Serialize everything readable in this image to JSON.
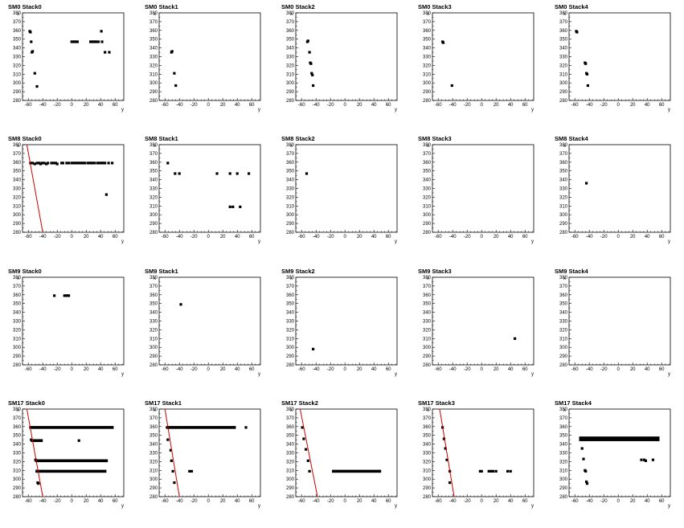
{
  "chart_data": {
    "type": "scatter",
    "layout": {
      "rows": 4,
      "cols": 5
    },
    "x_axis": {
      "label": "y",
      "range": [
        -68,
        72
      ],
      "ticks": [
        -60,
        -40,
        -20,
        0,
        20,
        40,
        60
      ]
    },
    "y_axis": {
      "label": "x",
      "range": [
        280,
        380
      ],
      "ticks": [
        280,
        290,
        300,
        310,
        320,
        330,
        340,
        350,
        360,
        370,
        380
      ]
    },
    "marker_color": "#000000",
    "line_color": "#cc0000",
    "panels": [
      {
        "title": "SM0 Stack0",
        "points": [
          [
            -58,
            359
          ],
          [
            -57,
            358
          ],
          [
            -56,
            347
          ],
          [
            -55,
            335
          ],
          [
            -54,
            336
          ],
          [
            -51,
            311
          ],
          [
            -48,
            296
          ],
          [
            0,
            347
          ],
          [
            2,
            347
          ],
          [
            4,
            347
          ],
          [
            6,
            347
          ],
          [
            8,
            347
          ],
          [
            26,
            347
          ],
          [
            28,
            347
          ],
          [
            30,
            347
          ],
          [
            32,
            347
          ],
          [
            34,
            347
          ],
          [
            37,
            347
          ],
          [
            41,
            359
          ],
          [
            42,
            347
          ],
          [
            46,
            335
          ],
          [
            52,
            335
          ]
        ]
      },
      {
        "title": "SM0 Stack1",
        "points": [
          [
            -51,
            335
          ],
          [
            -50,
            336
          ],
          [
            -47,
            311
          ],
          [
            -45,
            297
          ]
        ]
      },
      {
        "title": "SM0 Stack2",
        "points": [
          [
            -52,
            347
          ],
          [
            -51,
            348
          ],
          [
            -49,
            335
          ],
          [
            -48,
            323
          ],
          [
            -47,
            322
          ],
          [
            -46,
            311
          ],
          [
            -45,
            309
          ],
          [
            -44,
            297
          ]
        ]
      },
      {
        "title": "SM0 Stack3",
        "points": [
          [
            -54,
            347
          ],
          [
            -53,
            346
          ],
          [
            -41,
            297
          ]
        ]
      },
      {
        "title": "SM0 Stack4",
        "points": [
          [
            -58,
            359
          ],
          [
            -57,
            358
          ],
          [
            -46,
            323
          ],
          [
            -45,
            322
          ],
          [
            -44,
            311
          ],
          [
            -43,
            310
          ],
          [
            -42,
            297
          ]
        ]
      },
      {
        "title": "SM8 Stack0",
        "points": [
          [
            -57,
            359
          ],
          [
            -54,
            359
          ],
          [
            -51,
            358
          ],
          [
            -48,
            359
          ],
          [
            -45,
            359
          ],
          [
            -43,
            358
          ],
          [
            -41,
            359
          ],
          [
            -38,
            359
          ],
          [
            -35,
            358
          ],
          [
            -33,
            359
          ],
          [
            -28,
            359
          ],
          [
            -25,
            359
          ],
          [
            -22,
            359
          ],
          [
            -20,
            358
          ],
          [
            -14,
            359
          ],
          [
            -12,
            359
          ],
          [
            -7,
            359
          ],
          [
            -4,
            359
          ],
          [
            0,
            359
          ],
          [
            2,
            359
          ],
          [
            4,
            359
          ],
          [
            6,
            359
          ],
          [
            8,
            359
          ],
          [
            10,
            359
          ],
          [
            12,
            359
          ],
          [
            14,
            359
          ],
          [
            16,
            359
          ],
          [
            18,
            359
          ],
          [
            22,
            359
          ],
          [
            24,
            359
          ],
          [
            26,
            359
          ],
          [
            28,
            359
          ],
          [
            30,
            359
          ],
          [
            32,
            359
          ],
          [
            36,
            359
          ],
          [
            38,
            359
          ],
          [
            40,
            359
          ],
          [
            42,
            359
          ],
          [
            44,
            359
          ],
          [
            46,
            359
          ],
          [
            51,
            359
          ],
          [
            56,
            359
          ],
          [
            48,
            323
          ]
        ],
        "line": [
          [
            -62,
            380
          ],
          [
            -40,
            280
          ]
        ]
      },
      {
        "title": "SM8 Stack1",
        "points": [
          [
            -56,
            359
          ],
          [
            -46,
            347
          ],
          [
            -40,
            347
          ],
          [
            12,
            347
          ],
          [
            30,
            347
          ],
          [
            40,
            347
          ],
          [
            56,
            347
          ],
          [
            30,
            309
          ],
          [
            34,
            309
          ],
          [
            44,
            309
          ]
        ]
      },
      {
        "title": "SM8 Stack2",
        "points": [
          [
            -53,
            347
          ]
        ]
      },
      {
        "title": "SM8 Stack3",
        "points": []
      },
      {
        "title": "SM8 Stack4",
        "points": [
          [
            -44,
            336
          ]
        ]
      },
      {
        "title": "SM9 Stack0",
        "points": [
          [
            -24,
            359
          ],
          [
            -10,
            359
          ],
          [
            -8,
            359
          ],
          [
            -6,
            359
          ],
          [
            -4,
            359
          ]
        ]
      },
      {
        "title": "SM9 Stack1",
        "points": [
          [
            -38,
            349
          ]
        ]
      },
      {
        "title": "SM9 Stack2",
        "points": [
          [
            -44,
            298
          ]
        ]
      },
      {
        "title": "SM9 Stack3",
        "points": [
          [
            46,
            310
          ]
        ]
      },
      {
        "title": "SM9 Stack4",
        "points": []
      },
      {
        "title": "SM17 Stack0",
        "points": [],
        "hlines": [
          [
            -57,
            58,
            359
          ],
          [
            -55,
            -40,
            344
          ],
          [
            -48,
            50,
            321
          ],
          [
            -50,
            48,
            309
          ]
        ],
        "vcluster": [
          [
            -57,
            359
          ],
          [
            -56,
            345
          ],
          [
            -55,
            344
          ],
          [
            -50,
            322
          ],
          [
            -49,
            321
          ],
          [
            -48,
            309
          ],
          [
            -47,
            296
          ],
          [
            -46,
            295
          ],
          [
            10,
            344
          ]
        ],
        "line": [
          [
            -62,
            380
          ],
          [
            -40,
            280
          ]
        ]
      },
      {
        "title": "SM17 Stack1",
        "points": [
          [
            -57,
            359
          ],
          [
            -56,
            345
          ],
          [
            -52,
            333
          ],
          [
            -51,
            321
          ],
          [
            -49,
            309
          ],
          [
            -47,
            296
          ],
          [
            -26,
            309
          ],
          [
            -23,
            309
          ],
          [
            52,
            359
          ]
        ],
        "hlines": [
          [
            -58,
            38,
            359
          ]
        ],
        "line": [
          [
            -60,
            380
          ],
          [
            -40,
            280
          ]
        ]
      },
      {
        "title": "SM17 Stack2",
        "points": [
          [
            -59,
            359
          ],
          [
            -57,
            346
          ],
          [
            -54,
            334
          ],
          [
            -51,
            321
          ],
          [
            -49,
            309
          ]
        ],
        "hlines": [
          [
            -18,
            50,
            309
          ]
        ],
        "line": [
          [
            -62,
            380
          ],
          [
            -38,
            280
          ]
        ]
      },
      {
        "title": "SM17 Stack3",
        "points": [
          [
            -54,
            359
          ],
          [
            -52,
            346
          ],
          [
            -50,
            335
          ],
          [
            -48,
            322
          ],
          [
            -44,
            309
          ],
          [
            -44,
            296
          ],
          [
            -2,
            309
          ],
          [
            0,
            309
          ],
          [
            10,
            309
          ],
          [
            12,
            309
          ],
          [
            14,
            309
          ],
          [
            16,
            309
          ],
          [
            20,
            309
          ],
          [
            36,
            309
          ],
          [
            40,
            309
          ]
        ],
        "line": [
          [
            -58,
            380
          ],
          [
            -38,
            280
          ]
        ]
      },
      {
        "title": "SM17 Stack4",
        "points": [
          [
            -50,
            335
          ],
          [
            -48,
            323
          ],
          [
            -46,
            310
          ],
          [
            -45,
            309
          ],
          [
            -44,
            297
          ],
          [
            -43,
            295
          ],
          [
            32,
            322
          ],
          [
            36,
            322
          ],
          [
            38,
            321
          ],
          [
            48,
            322
          ]
        ],
        "hlines": [
          [
            -54,
            57,
            347
          ],
          [
            -54,
            57,
            346
          ],
          [
            -54,
            57,
            345
          ]
        ]
      }
    ]
  }
}
